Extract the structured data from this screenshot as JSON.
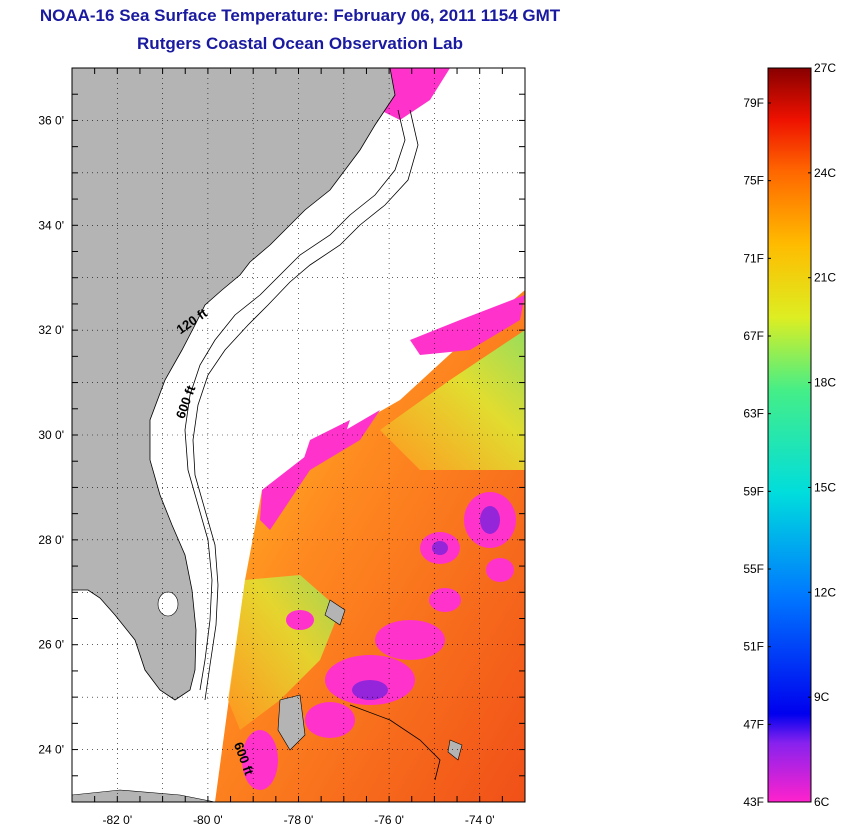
{
  "title": {
    "line1": "NOAA-16 Sea Surface Temperature:  February 06, 2011 1154 GMT",
    "line2": "Rutgers Coastal Ocean Observation Lab"
  },
  "map": {
    "lon_range": [
      -83,
      -73
    ],
    "lat_range": [
      23,
      37
    ],
    "lat_ticks": [
      {
        "value": 36,
        "label": "36 0'"
      },
      {
        "value": 34,
        "label": "34 0'"
      },
      {
        "value": 32,
        "label": "32 0'"
      },
      {
        "value": 30,
        "label": "30 0'"
      },
      {
        "value": 28,
        "label": "28 0'"
      },
      {
        "value": 26,
        "label": "26 0'"
      },
      {
        "value": 24,
        "label": "24 0'"
      }
    ],
    "lon_ticks": [
      {
        "value": -82,
        "label": "-82 0'"
      },
      {
        "value": -80,
        "label": "-80 0'"
      },
      {
        "value": -78,
        "label": "-78 0'"
      },
      {
        "value": -76,
        "label": "-76 0'"
      },
      {
        "value": -74,
        "label": "-74 0'"
      }
    ],
    "contour_labels": [
      {
        "text": "120 ft",
        "lon": -80.3,
        "lat": 32.1
      },
      {
        "text": "600 ft",
        "lon": -80.4,
        "lat": 30.6
      },
      {
        "text": "600 ft",
        "lon": -79.3,
        "lat": 23.8
      }
    ],
    "colors": {
      "land": "#b4b4b4",
      "ocean_warm": "#f06020",
      "cloud_cold": "#ff33cc",
      "grid": "#000000"
    }
  },
  "colorbar": {
    "celsius": [
      "27C",
      "24C",
      "21C",
      "18C",
      "15C",
      "12C",
      "9C",
      "6C"
    ],
    "fahrenheit": [
      "79F",
      "75F",
      "71F",
      "67F",
      "63F",
      "59F",
      "55F",
      "51F",
      "47F",
      "43F"
    ],
    "stops": [
      "#ff22cc",
      "#8822ee",
      "#0000ee",
      "#0077ff",
      "#00dddd",
      "#44ee88",
      "#ddee22",
      "#ffbb00",
      "#ff6600",
      "#ee1100",
      "#880000"
    ]
  }
}
